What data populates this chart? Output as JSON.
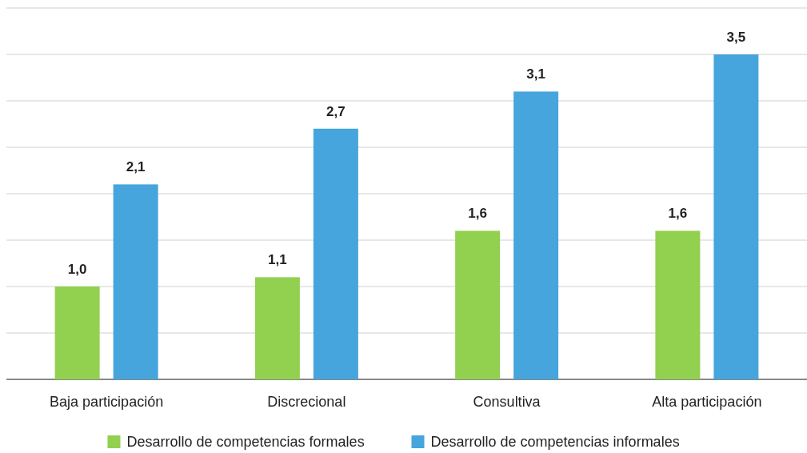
{
  "chart_data": {
    "type": "bar",
    "categories": [
      "Baja participación",
      "Discrecional",
      "Consultiva",
      "Alta participación"
    ],
    "series": [
      {
        "name": "Desarrollo de competencias formales",
        "color": "#92d050",
        "values": [
          1.0,
          1.1,
          1.6,
          1.6
        ],
        "value_labels": [
          "1,0",
          "1,1",
          "1,6",
          "1,6"
        ]
      },
      {
        "name": "Desarrollo de competencias informales",
        "color": "#45a5dc",
        "values": [
          2.1,
          2.7,
          3.1,
          3.5
        ],
        "value_labels": [
          "2,1",
          "2,7",
          "3,1",
          "3,5"
        ]
      }
    ],
    "ylim": [
      0,
      4
    ],
    "yticks": [
      {
        "value": 0,
        "label": null
      },
      {
        "value": 0.5,
        "label": null
      },
      {
        "value": 1,
        "label": null
      },
      {
        "value": 1.5,
        "label": null
      },
      {
        "value": 2,
        "label": null
      },
      {
        "value": 2.5,
        "label": null
      },
      {
        "value": 3,
        "label": null
      },
      {
        "value": 3.5,
        "label": null
      },
      {
        "value": 4,
        "label": null
      }
    ],
    "grid": "y",
    "legend": "bottom",
    "tick_labels": "x"
  }
}
